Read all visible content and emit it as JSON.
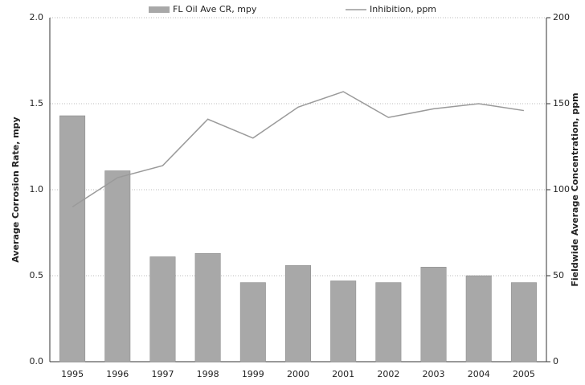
{
  "chart_data": {
    "type": "bar_line",
    "categories": [
      "1995",
      "1996",
      "1997",
      "1998",
      "1999",
      "2000",
      "2001",
      "2002",
      "2003",
      "2004",
      "2005"
    ],
    "series": [
      {
        "name": "FL Oil Ave CR, mpy",
        "color": "#a8a8a8",
        "type": "bar",
        "values": [
          1.43,
          1.11,
          0.61,
          0.63,
          0.46,
          0.56,
          0.47,
          0.46,
          0.55,
          0.5,
          0.46
        ]
      },
      {
        "name": "Inhibition, ppm",
        "color": "#9a9a9a",
        "type": "line",
        "axis": "y2",
        "values": [
          90,
          107,
          114,
          141,
          130,
          148,
          157,
          142,
          147,
          150,
          146
        ]
      }
    ],
    "y_label": "Average Corrosion Rate, mpy",
    "y2_label": "Fieldwide Average Concentration, ppm",
    "ylim": [
      0,
      2
    ],
    "yticks": [
      {
        "value": 0,
        "label": "0.0"
      },
      {
        "value": 0.5,
        "label": "0.5"
      },
      {
        "value": 1,
        "label": "1.0"
      },
      {
        "value": 1.5,
        "label": "1.5"
      },
      {
        "value": 2,
        "label": "2.0"
      }
    ],
    "y2lim": [
      0,
      200
    ],
    "y2ticks": [
      0,
      50,
      100,
      150,
      200
    ],
    "grid": true,
    "legend": "top"
  }
}
